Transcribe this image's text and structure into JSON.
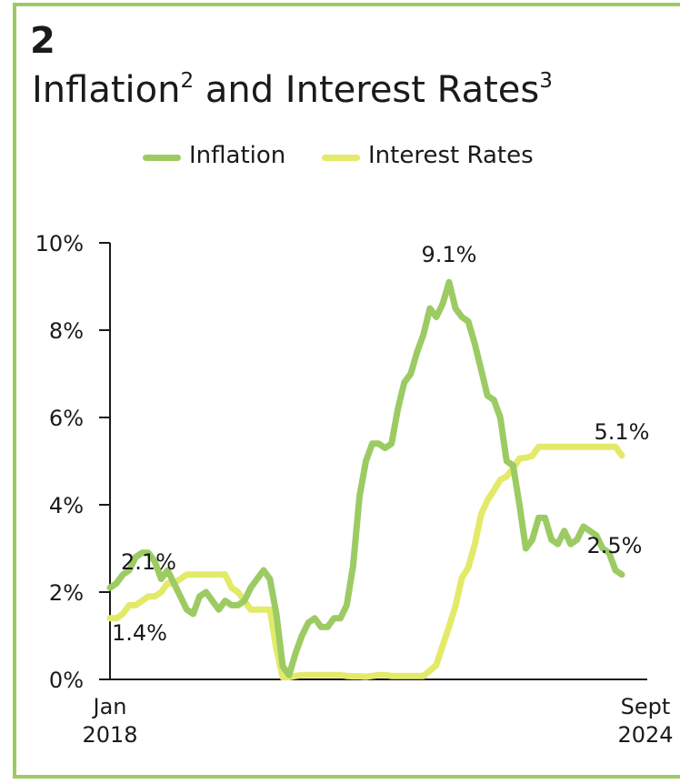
{
  "header": {
    "number": "2",
    "title_main": "Inflation",
    "title_sup1": "2",
    "title_mid": " and Interest Rates",
    "title_sup2": "3"
  },
  "colors": {
    "border": "#9ccb63",
    "inflation": "#9ccb63",
    "interest": "#e3ea6a"
  },
  "chart_data": {
    "type": "line",
    "title": "Inflation² and Interest Rates³",
    "xlabel": "",
    "ylabel": "",
    "ylim": [
      0,
      10
    ],
    "yticks": [
      0,
      2,
      4,
      6,
      8,
      10
    ],
    "ytick_labels": [
      "0%",
      "2%",
      "4%",
      "6%",
      "8%",
      "10%"
    ],
    "x_range": [
      "2018-01",
      "2024-09"
    ],
    "xtick_labels": [
      {
        "line1": "Jan",
        "line2": "2018"
      },
      {
        "line1": "Sept",
        "line2": "2024"
      }
    ],
    "legend": {
      "placement": "top-center",
      "entries": [
        "Inflation",
        "Interest Rates"
      ]
    },
    "grid": false,
    "series": [
      {
        "name": "Inflation",
        "color": "#9ccb63",
        "x": [
          "2018-01",
          "2018-02",
          "2018-03",
          "2018-04",
          "2018-05",
          "2018-06",
          "2018-07",
          "2018-08",
          "2018-09",
          "2018-10",
          "2018-11",
          "2018-12",
          "2019-01",
          "2019-02",
          "2019-03",
          "2019-04",
          "2019-05",
          "2019-06",
          "2019-07",
          "2019-08",
          "2019-09",
          "2019-10",
          "2019-11",
          "2019-12",
          "2020-01",
          "2020-02",
          "2020-03",
          "2020-04",
          "2020-05",
          "2020-06",
          "2020-07",
          "2020-08",
          "2020-09",
          "2020-10",
          "2020-11",
          "2020-12",
          "2021-01",
          "2021-02",
          "2021-03",
          "2021-04",
          "2021-05",
          "2021-06",
          "2021-07",
          "2021-08",
          "2021-09",
          "2021-10",
          "2021-11",
          "2021-12",
          "2022-01",
          "2022-02",
          "2022-03",
          "2022-04",
          "2022-05",
          "2022-06",
          "2022-07",
          "2022-08",
          "2022-09",
          "2022-10",
          "2022-11",
          "2022-12",
          "2023-01",
          "2023-02",
          "2023-03",
          "2023-04",
          "2023-05",
          "2023-06",
          "2023-07",
          "2023-08",
          "2023-09",
          "2023-10",
          "2023-11",
          "2023-12",
          "2024-01",
          "2024-02",
          "2024-03",
          "2024-04",
          "2024-05",
          "2024-06",
          "2024-07",
          "2024-08",
          "2024-09"
        ],
        "values": [
          2.1,
          2.2,
          2.4,
          2.5,
          2.8,
          2.9,
          2.9,
          2.7,
          2.3,
          2.5,
          2.2,
          1.9,
          1.6,
          1.5,
          1.9,
          2.0,
          1.8,
          1.6,
          1.8,
          1.7,
          1.7,
          1.8,
          2.1,
          2.3,
          2.5,
          2.3,
          1.5,
          0.3,
          0.1,
          0.6,
          1.0,
          1.3,
          1.4,
          1.2,
          1.2,
          1.4,
          1.4,
          1.7,
          2.6,
          4.2,
          5.0,
          5.4,
          5.4,
          5.3,
          5.4,
          6.2,
          6.8,
          7.0,
          7.5,
          7.9,
          8.5,
          8.3,
          8.6,
          9.1,
          8.5,
          8.3,
          8.2,
          7.7,
          7.1,
          6.5,
          6.4,
          6.0,
          5.0,
          4.9,
          4.0,
          3.0,
          3.2,
          3.7,
          3.7,
          3.2,
          3.1,
          3.4,
          3.1,
          3.2,
          3.5,
          3.4,
          3.3,
          3.0,
          2.9,
          2.5,
          2.4
        ],
        "labels": [
          {
            "index": 0,
            "text": "2.1%"
          },
          {
            "index": 53,
            "text": "9.1%"
          },
          {
            "index": 80,
            "text": "2.5%"
          }
        ]
      },
      {
        "name": "Interest Rates",
        "color": "#e3ea6a",
        "x": [
          "2018-01",
          "2018-02",
          "2018-03",
          "2018-04",
          "2018-05",
          "2018-06",
          "2018-07",
          "2018-08",
          "2018-09",
          "2018-10",
          "2018-11",
          "2018-12",
          "2019-01",
          "2019-02",
          "2019-03",
          "2019-04",
          "2019-05",
          "2019-06",
          "2019-07",
          "2019-08",
          "2019-09",
          "2019-10",
          "2019-11",
          "2019-12",
          "2020-01",
          "2020-02",
          "2020-03",
          "2020-04",
          "2020-05",
          "2020-06",
          "2020-07",
          "2020-08",
          "2020-09",
          "2020-10",
          "2020-11",
          "2020-12",
          "2021-01",
          "2021-02",
          "2021-03",
          "2021-04",
          "2021-05",
          "2021-06",
          "2021-07",
          "2021-08",
          "2021-09",
          "2021-10",
          "2021-11",
          "2021-12",
          "2022-01",
          "2022-02",
          "2022-03",
          "2022-04",
          "2022-05",
          "2022-06",
          "2022-07",
          "2022-08",
          "2022-09",
          "2022-10",
          "2022-11",
          "2022-12",
          "2023-01",
          "2023-02",
          "2023-03",
          "2023-04",
          "2023-05",
          "2023-06",
          "2023-07",
          "2023-08",
          "2023-09",
          "2023-10",
          "2023-11",
          "2023-12",
          "2024-01",
          "2024-02",
          "2024-03",
          "2024-04",
          "2024-05",
          "2024-06",
          "2024-07",
          "2024-08",
          "2024-09"
        ],
        "values": [
          1.4,
          1.4,
          1.5,
          1.7,
          1.7,
          1.8,
          1.9,
          1.9,
          2.0,
          2.2,
          2.2,
          2.3,
          2.4,
          2.4,
          2.4,
          2.4,
          2.4,
          2.4,
          2.4,
          2.1,
          2.0,
          1.8,
          1.6,
          1.6,
          1.6,
          1.6,
          0.7,
          0.05,
          0.05,
          0.08,
          0.1,
          0.1,
          0.1,
          0.1,
          0.1,
          0.1,
          0.1,
          0.08,
          0.07,
          0.07,
          0.06,
          0.08,
          0.1,
          0.1,
          0.08,
          0.08,
          0.08,
          0.08,
          0.08,
          0.08,
          0.2,
          0.33,
          0.77,
          1.21,
          1.68,
          2.33,
          2.56,
          3.08,
          3.78,
          4.1,
          4.33,
          4.57,
          4.65,
          4.83,
          5.06,
          5.08,
          5.12,
          5.33,
          5.33,
          5.33,
          5.33,
          5.33,
          5.33,
          5.33,
          5.33,
          5.33,
          5.33,
          5.33,
          5.33,
          5.33,
          5.13
        ],
        "labels": [
          {
            "index": 0,
            "text": "1.4%"
          },
          {
            "index": 80,
            "text": "5.1%"
          }
        ]
      }
    ]
  }
}
